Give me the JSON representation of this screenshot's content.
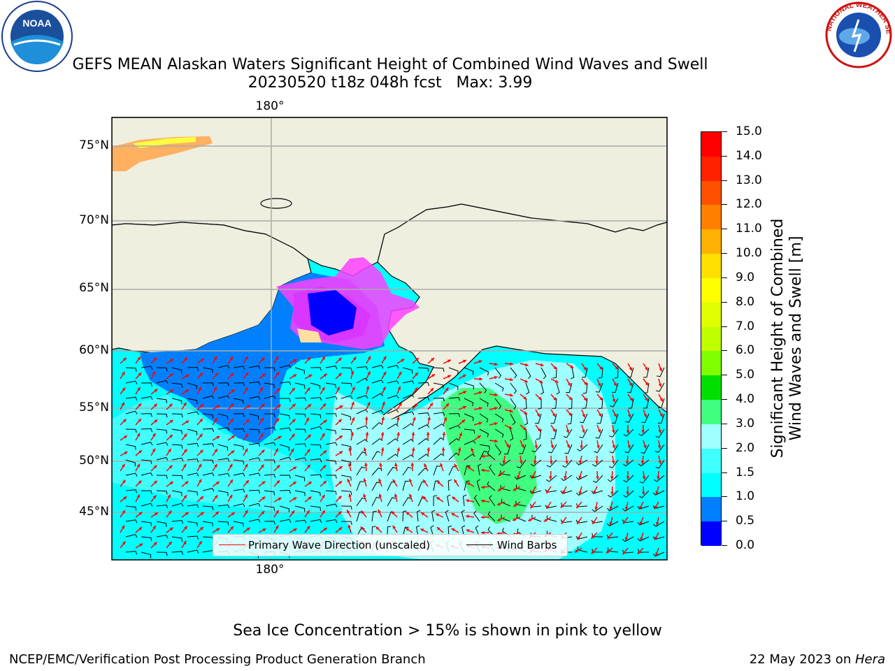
{
  "header": {
    "title_line1": "GEFS MEAN Alaskan Waters Significant Height of Combined Wind Waves and Swell",
    "title_line2": "20230520 t18z 048h fcst   Max: 3.99"
  },
  "logos": {
    "noaa_text": "NOAA",
    "nws_text": "NATIONAL WEATHER SERVICE"
  },
  "map": {
    "lat_ticks": [
      "75°N",
      "70°N",
      "65°N",
      "60°N",
      "55°N",
      "50°N",
      "45°N"
    ],
    "lon_tick_top": "180°",
    "lon_tick_bottom": "180°",
    "land_color": "#efefe0",
    "ocean_colors": {
      "deep_blue": "#0000ff",
      "blue": "#0080ff",
      "cyan": "#00ffff",
      "light_cyan": "#40ffff",
      "pale_cyan": "#a0ffff",
      "green": "#40ff80"
    },
    "sea_ice_color": "#ff40ff",
    "arrow_color": "#ff0000",
    "barb_color": "#000000"
  },
  "colorbar": {
    "title_line1": "Significant Height of Combined",
    "title_line2": "Wind Waves and Swell [m]",
    "labels": [
      "15.0",
      "14.0",
      "13.0",
      "12.0",
      "11.0",
      "10.0",
      "9.0",
      "8.0",
      "7.0",
      "6.0",
      "5.0",
      "4.0",
      "3.0",
      "2.0",
      "1.5",
      "1.0",
      "0.5",
      "0.0"
    ],
    "colors_top_to_bottom": [
      "#ff0000",
      "#ff2000",
      "#ff5000",
      "#ff8000",
      "#ffb000",
      "#ffe000",
      "#ffff00",
      "#e0ff00",
      "#c0ff00",
      "#80ff00",
      "#00e000",
      "#40ff80",
      "#a0ffff",
      "#40ffff",
      "#00ffff",
      "#0080ff",
      "#0000ff"
    ]
  },
  "legend": {
    "wave_label": "Primary Wave Direction (unscaled)",
    "barb_label": "Wind Barbs"
  },
  "footer": {
    "note": "Sea Ice Concentration > 15% is shown in pink to yellow",
    "credit": "NCEP/EMC/Verification Post Processing Product Generation Branch",
    "date_prefix": "22 May 2023 on ",
    "machine": "Hera"
  }
}
